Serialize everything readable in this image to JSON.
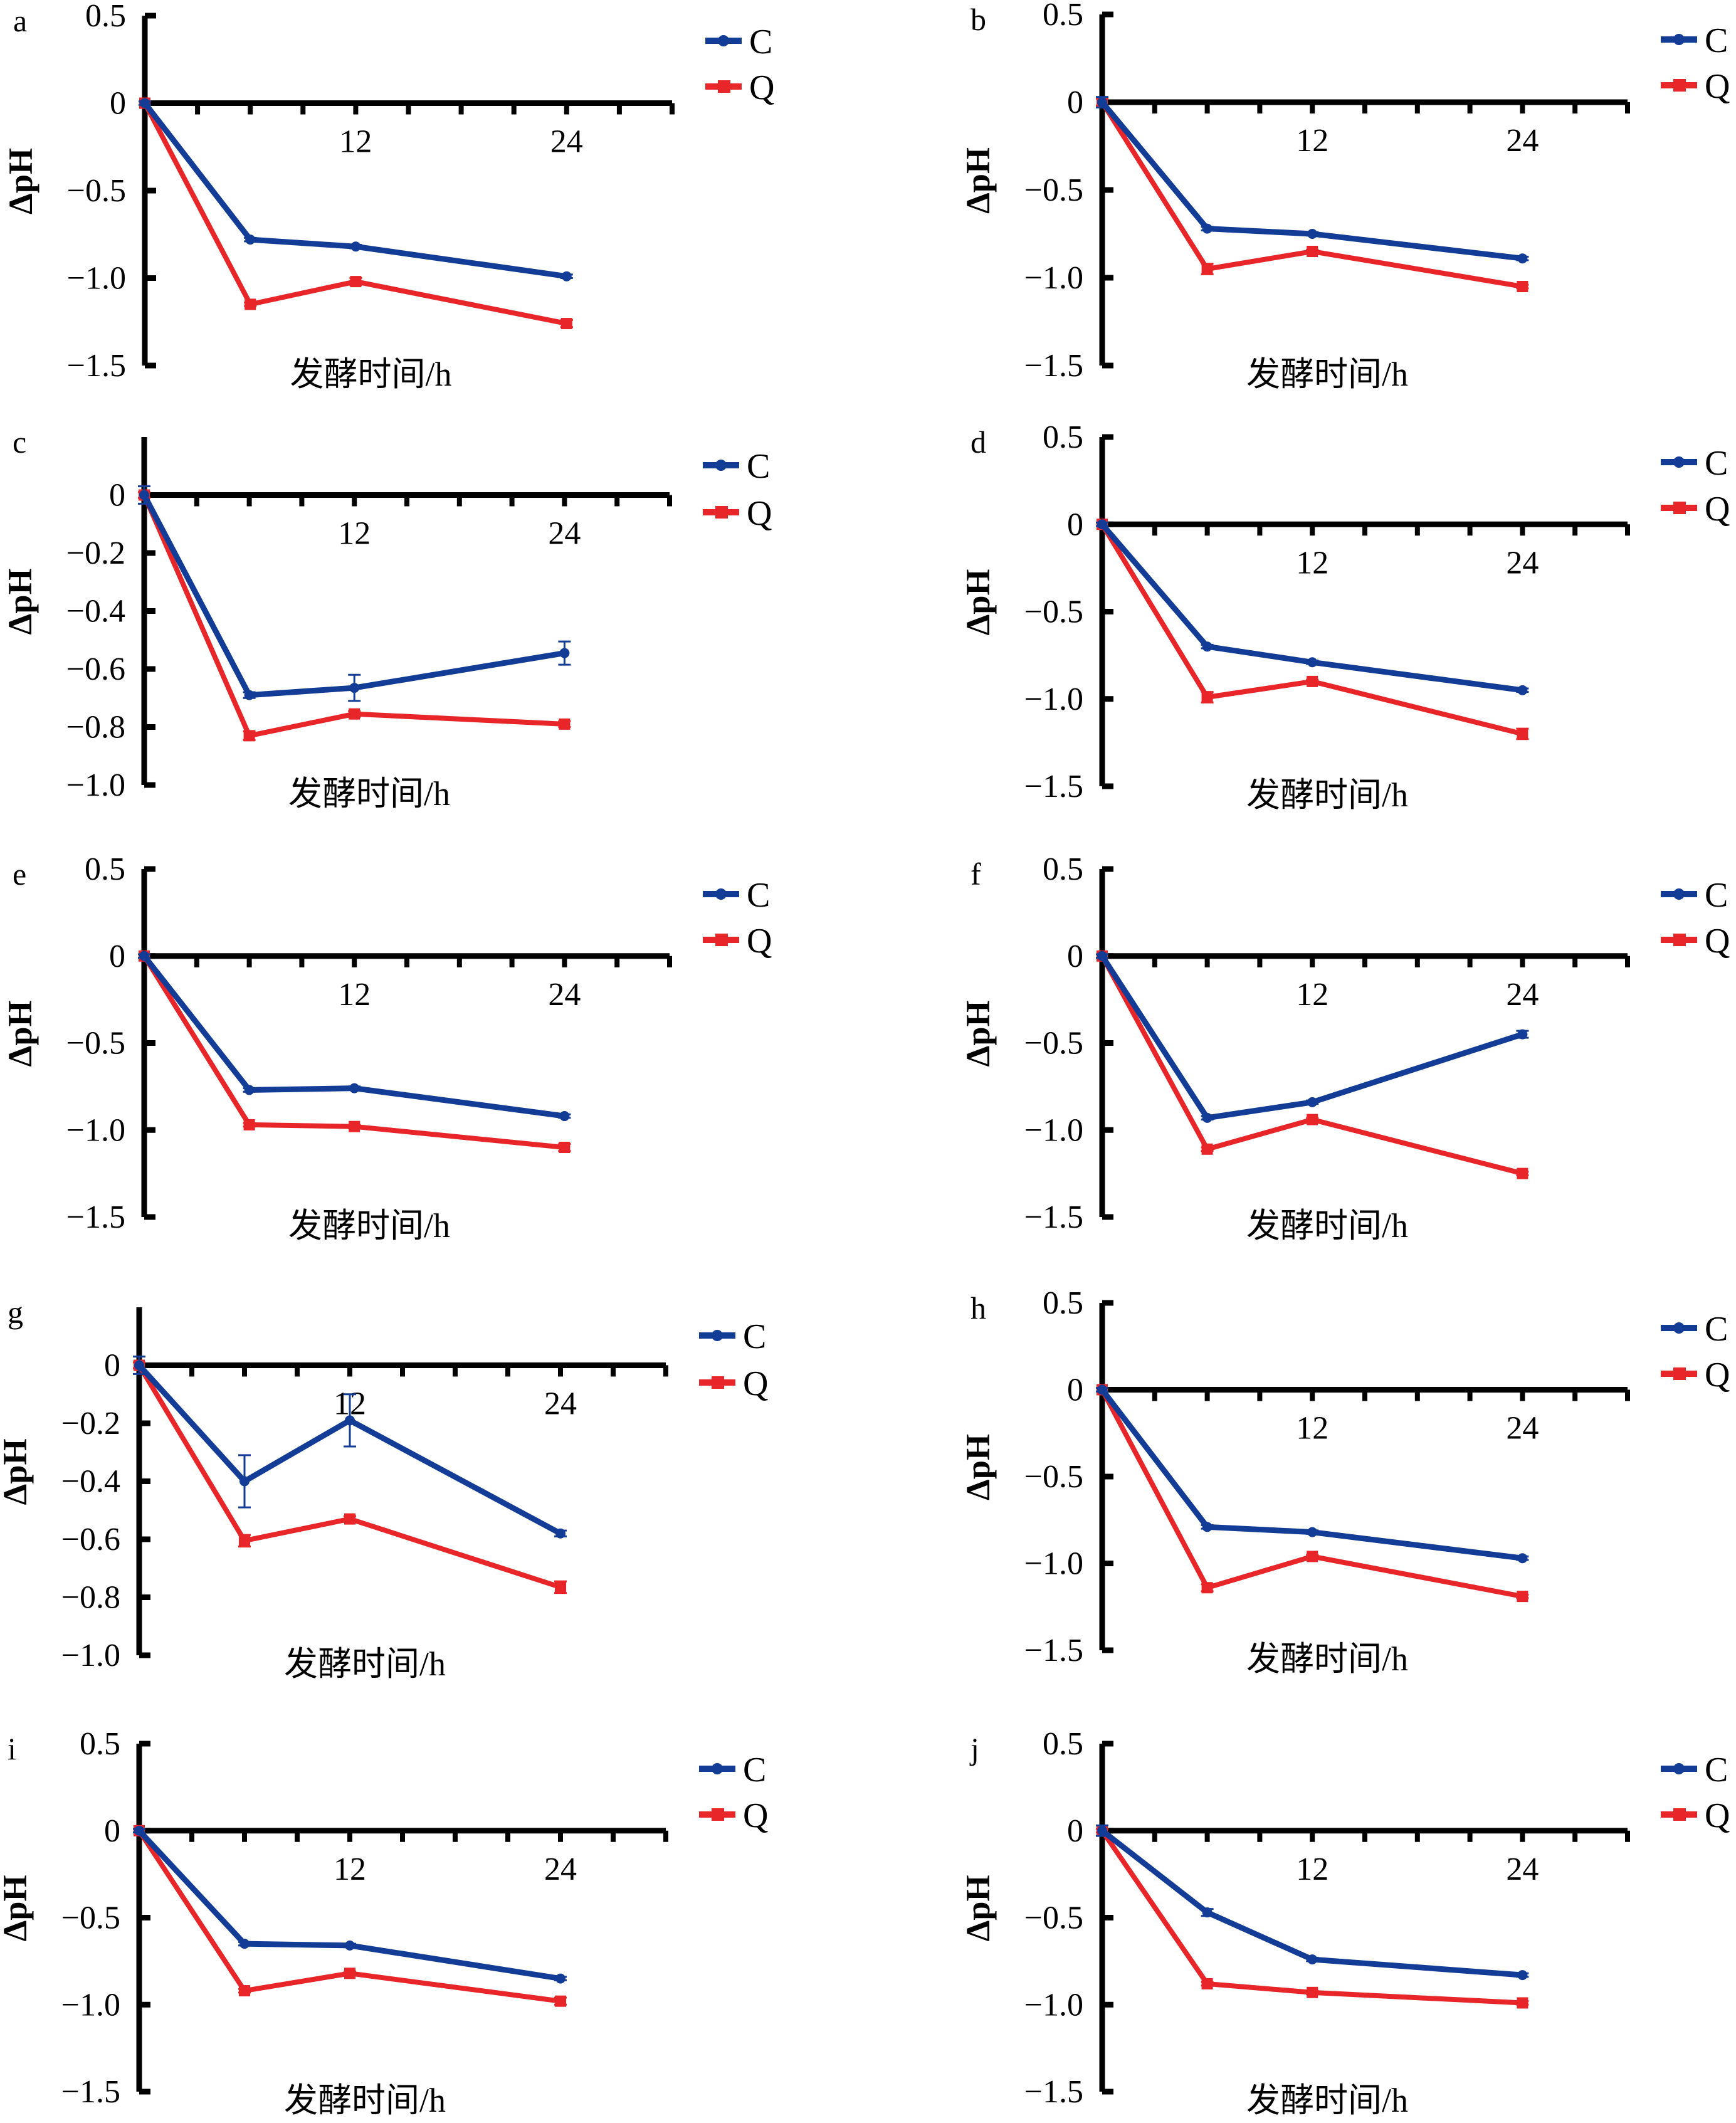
{
  "figure": {
    "series_names": [
      "C",
      "Q"
    ],
    "series_colors": {
      "C": "#123C96",
      "Q": "#E8262A"
    },
    "series_markers": {
      "C": "circle",
      "Q": "square"
    },
    "x_values": [
      0,
      6,
      12,
      24
    ]
  },
  "chart_data": [
    {
      "type": "line",
      "panel": "a",
      "xlabel": "发酵时间/h",
      "ylabel": "ΔpH",
      "xlim": [
        0,
        30
      ],
      "x_tick_step": 3,
      "x_tick_labels": [
        "12",
        "24"
      ],
      "ylim": [
        -1.5,
        0.5
      ],
      "y_tick_labels": [
        "0.5",
        "0",
        "−0.5",
        "−1.0",
        "−1.5"
      ],
      "y_ticks": [
        0.5,
        0,
        -0.5,
        -1.0,
        -1.5
      ],
      "legend": [
        "C",
        "Q"
      ],
      "legend_position": "top-right",
      "x": [
        0,
        6,
        12,
        24
      ],
      "series": [
        {
          "name": "C",
          "values": [
            0,
            -0.78,
            -0.82,
            -0.99
          ],
          "errors": [
            0.01,
            0.01,
            0.01,
            0.01
          ]
        },
        {
          "name": "Q",
          "values": [
            0,
            -1.15,
            -1.02,
            -1.26
          ],
          "errors": [
            0.01,
            0.01,
            0.02,
            0.02
          ]
        }
      ]
    },
    {
      "type": "line",
      "panel": "b",
      "xlabel": "发酵时间/h",
      "ylabel": "ΔpH",
      "xlim": [
        0,
        30
      ],
      "x_tick_step": 3,
      "x_tick_labels": [
        "12",
        "24"
      ],
      "ylim": [
        -1.5,
        0.5
      ],
      "y_tick_labels": [
        "0.5",
        "0",
        "−0.5",
        "−1.0",
        "−1.5"
      ],
      "y_ticks": [
        0.5,
        0,
        -0.5,
        -1.0,
        -1.5
      ],
      "legend": [
        "C",
        "Q"
      ],
      "legend_position": "top-right",
      "x": [
        0,
        6,
        12,
        24
      ],
      "series": [
        {
          "name": "C",
          "values": [
            0,
            -0.72,
            -0.75,
            -0.89
          ],
          "errors": [
            0.03,
            0.01,
            0.01,
            0.01
          ]
        },
        {
          "name": "Q",
          "values": [
            0,
            -0.95,
            -0.85,
            -1.05
          ],
          "errors": [
            0.02,
            0.03,
            0.01,
            0.01
          ]
        }
      ]
    },
    {
      "type": "line",
      "panel": "c",
      "xlabel": "发酵时间/h",
      "ylabel": "ΔpH",
      "xlim": [
        0,
        30
      ],
      "x_tick_step": 3,
      "x_tick_labels": [
        "12",
        "24"
      ],
      "ylim": [
        -1.0,
        0.2
      ],
      "y_tick_labels": [
        "0",
        "−0.2",
        "−0.4",
        "−0.6",
        "−0.8",
        "−1.0"
      ],
      "y_ticks": [
        0,
        -0.2,
        -0.4,
        -0.6,
        -0.8,
        -1.0
      ],
      "legend": [
        "C",
        "Q"
      ],
      "legend_position": "top-right",
      "x": [
        0,
        6,
        12,
        24
      ],
      "series": [
        {
          "name": "C",
          "values": [
            0,
            -0.69,
            -0.665,
            -0.545
          ],
          "errors": [
            0.03,
            0.01,
            0.045,
            0.04
          ]
        },
        {
          "name": "Q",
          "values": [
            0,
            -0.83,
            -0.755,
            -0.79
          ],
          "errors": [
            0.01,
            0.015,
            0.01,
            0.01
          ]
        }
      ]
    },
    {
      "type": "line",
      "panel": "d",
      "xlabel": "发酵时间/h",
      "ylabel": "ΔpH",
      "xlim": [
        0,
        30
      ],
      "x_tick_step": 3,
      "x_tick_labels": [
        "12",
        "24"
      ],
      "ylim": [
        -1.5,
        0.5
      ],
      "y_tick_labels": [
        "0.5",
        "0",
        "−0.5",
        "−1.0",
        "−1.5"
      ],
      "y_ticks": [
        0.5,
        0,
        -0.5,
        -1.0,
        -1.5
      ],
      "legend": [
        "C",
        "Q"
      ],
      "legend_position": "top-right",
      "x": [
        0,
        6,
        12,
        24
      ],
      "series": [
        {
          "name": "C",
          "values": [
            0,
            -0.7,
            -0.79,
            -0.95
          ],
          "errors": [
            0.01,
            0.01,
            0.01,
            0.01
          ]
        },
        {
          "name": "Q",
          "values": [
            0,
            -0.99,
            -0.9,
            -1.2
          ],
          "errors": [
            0.01,
            0.03,
            0.01,
            0.03
          ]
        }
      ]
    },
    {
      "type": "line",
      "panel": "e",
      "xlabel": "发酵时间/h",
      "ylabel": "ΔpH",
      "xlim": [
        0,
        30
      ],
      "x_tick_step": 3,
      "x_tick_labels": [
        "12",
        "24"
      ],
      "ylim": [
        -1.5,
        0.5
      ],
      "y_tick_labels": [
        "0.5",
        "0",
        "−0.5",
        "−1.0",
        "−1.5"
      ],
      "y_ticks": [
        0.5,
        0,
        -0.5,
        -1.0,
        -1.5
      ],
      "legend": [
        "C",
        "Q"
      ],
      "legend_position": "top-right",
      "x": [
        0,
        6,
        12,
        24
      ],
      "series": [
        {
          "name": "C",
          "values": [
            0,
            -0.77,
            -0.76,
            -0.92
          ],
          "errors": [
            0.01,
            0.01,
            0.01,
            0.01
          ]
        },
        {
          "name": "Q",
          "values": [
            0,
            -0.97,
            -0.98,
            -1.1
          ],
          "errors": [
            0.01,
            0.01,
            0.01,
            0.02
          ]
        }
      ]
    },
    {
      "type": "line",
      "panel": "f",
      "xlabel": "发酵时间/h",
      "ylabel": "ΔpH",
      "xlim": [
        0,
        30
      ],
      "x_tick_step": 3,
      "x_tick_labels": [
        "12",
        "24"
      ],
      "ylim": [
        -1.5,
        0.5
      ],
      "y_tick_labels": [
        "0.5",
        "0",
        "−0.5",
        "−1.0",
        "−1.5"
      ],
      "y_ticks": [
        0.5,
        0,
        -0.5,
        -1.0,
        -1.5
      ],
      "legend": [
        "C",
        "Q"
      ],
      "legend_position": "top-right",
      "x": [
        0,
        6,
        12,
        24
      ],
      "series": [
        {
          "name": "C",
          "values": [
            0,
            -0.93,
            -0.84,
            -0.45
          ],
          "errors": [
            0.01,
            0.01,
            0.01,
            0.02
          ]
        },
        {
          "name": "Q",
          "values": [
            0,
            -1.11,
            -0.94,
            -1.25
          ],
          "errors": [
            0.01,
            0.01,
            0.01,
            0.01
          ]
        }
      ]
    },
    {
      "type": "line",
      "panel": "g",
      "xlabel": "发酵时间/h",
      "ylabel": "ΔpH",
      "xlim": [
        0,
        30
      ],
      "x_tick_step": 3,
      "x_tick_labels": [
        "12",
        "24"
      ],
      "ylim": [
        -1.0,
        0.2
      ],
      "y_tick_labels": [
        "0",
        "−0.2",
        "−0.4",
        "−0.6",
        "−0.8",
        "−1.0"
      ],
      "y_ticks": [
        0,
        -0.2,
        -0.4,
        -0.6,
        -0.8,
        -1.0
      ],
      "legend": [
        "C",
        "Q"
      ],
      "legend_position": "top-right",
      "x": [
        0,
        6,
        12,
        24
      ],
      "series": [
        {
          "name": "C",
          "values": [
            0,
            -0.4,
            -0.19,
            -0.58
          ],
          "errors": [
            0.03,
            0.09,
            0.09,
            0.01
          ]
        },
        {
          "name": "Q",
          "values": [
            0,
            -0.605,
            -0.53,
            -0.765
          ],
          "errors": [
            0.01,
            0.02,
            0.01,
            0.02
          ]
        }
      ]
    },
    {
      "type": "line",
      "panel": "h",
      "xlabel": "发酵时间/h",
      "ylabel": "ΔpH",
      "xlim": [
        0,
        30
      ],
      "x_tick_step": 3,
      "x_tick_labels": [
        "12",
        "24"
      ],
      "ylim": [
        -1.5,
        0.5
      ],
      "y_tick_labels": [
        "0.5",
        "0",
        "−0.5",
        "−1.0",
        "−1.5"
      ],
      "y_ticks": [
        0.5,
        0,
        -0.5,
        -1.0,
        -1.5
      ],
      "legend": [
        "C",
        "Q"
      ],
      "legend_position": "top-right",
      "x": [
        0,
        6,
        12,
        24
      ],
      "series": [
        {
          "name": "C",
          "values": [
            0,
            -0.79,
            -0.82,
            -0.97
          ],
          "errors": [
            0.01,
            0.01,
            0.01,
            0.01
          ]
        },
        {
          "name": "Q",
          "values": [
            0,
            -1.14,
            -0.96,
            -1.19
          ],
          "errors": [
            0.01,
            0.02,
            0.01,
            0.01
          ]
        }
      ]
    },
    {
      "type": "line",
      "panel": "i",
      "xlabel": "发酵时间/h",
      "ylabel": "ΔpH",
      "xlim": [
        0,
        30
      ],
      "x_tick_step": 3,
      "x_tick_labels": [
        "12",
        "24"
      ],
      "ylim": [
        -1.5,
        0.5
      ],
      "y_tick_labels": [
        "0.5",
        "0",
        "−0.5",
        "−1.0",
        "−1.5"
      ],
      "y_ticks": [
        0.5,
        0,
        -0.5,
        -1.0,
        -1.5
      ],
      "legend": [
        "C",
        "Q"
      ],
      "legend_position": "top-right",
      "x": [
        0,
        6,
        12,
        24
      ],
      "series": [
        {
          "name": "C",
          "values": [
            0,
            -0.65,
            -0.66,
            -0.85
          ],
          "errors": [
            0.01,
            0.01,
            0.01,
            0.01
          ]
        },
        {
          "name": "Q",
          "values": [
            0,
            -0.92,
            -0.82,
            -0.98
          ],
          "errors": [
            0.01,
            0.01,
            0.01,
            0.02
          ]
        }
      ]
    },
    {
      "type": "line",
      "panel": "j",
      "xlabel": "发酵时间/h",
      "ylabel": "ΔpH",
      "xlim": [
        0,
        30
      ],
      "x_tick_step": 3,
      "x_tick_labels": [
        "12",
        "24"
      ],
      "ylim": [
        -1.5,
        0.5
      ],
      "y_tick_labels": [
        "0.5",
        "0",
        "−0.5",
        "−1.0",
        "−1.5"
      ],
      "y_ticks": [
        0.5,
        0,
        -0.5,
        -1.0,
        -1.5
      ],
      "legend": [
        "C",
        "Q"
      ],
      "legend_position": "top-right",
      "x": [
        0,
        6,
        12,
        24
      ],
      "series": [
        {
          "name": "C",
          "values": [
            0,
            -0.47,
            -0.74,
            -0.83
          ],
          "errors": [
            0.03,
            0.02,
            0.01,
            0.01
          ]
        },
        {
          "name": "Q",
          "values": [
            0,
            -0.88,
            -0.93,
            -0.99
          ],
          "errors": [
            0.01,
            0.01,
            0.01,
            0.01
          ]
        }
      ]
    }
  ]
}
